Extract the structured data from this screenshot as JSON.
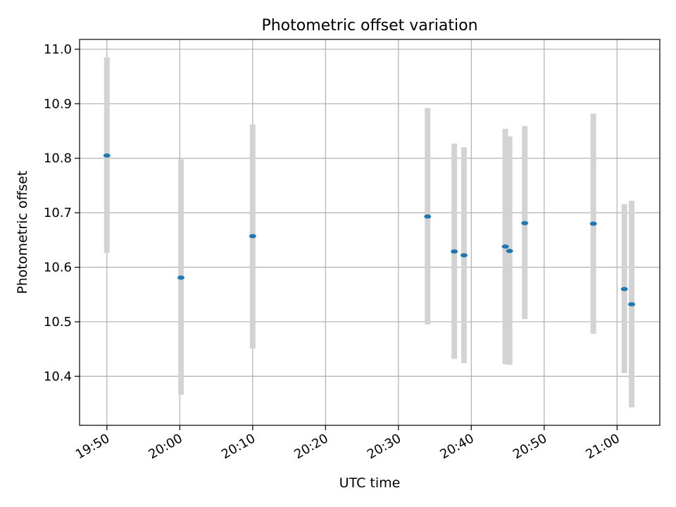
{
  "chart_data": {
    "type": "scatter",
    "title": "Photometric offset variation",
    "xlabel": "UTC time",
    "ylabel": "Photometric offset",
    "x_ticks": [
      "19:50",
      "20:00",
      "20:10",
      "20:20",
      "20:30",
      "20:40",
      "20:50",
      "21:00"
    ],
    "y_ticks": [
      "10.4",
      "10.5",
      "10.6",
      "10.7",
      "10.8",
      "10.9",
      "11.0"
    ],
    "xlim": [
      "19:46:15",
      "21:05:52"
    ],
    "ylim": [
      10.31,
      11.018
    ],
    "grid": true,
    "legend": "none",
    "series": [
      {
        "marker_color": "#1f77b4",
        "errorbar_color": "#d3d3d3",
        "points": [
          {
            "x": "19:50:00",
            "y": 10.805,
            "err_low": 10.626,
            "err_high": 10.985
          },
          {
            "x": "20:00:10",
            "y": 10.581,
            "err_low": 10.366,
            "err_high": 10.798
          },
          {
            "x": "20:10:00",
            "y": 10.657,
            "err_low": 10.451,
            "err_high": 10.862
          },
          {
            "x": "20:34:00",
            "y": 10.693,
            "err_low": 10.495,
            "err_high": 10.892
          },
          {
            "x": "20:37:40",
            "y": 10.629,
            "err_low": 10.432,
            "err_high": 10.827
          },
          {
            "x": "20:39:00",
            "y": 10.622,
            "err_low": 10.424,
            "err_high": 10.82
          },
          {
            "x": "20:44:40",
            "y": 10.638,
            "err_low": 10.422,
            "err_high": 10.854
          },
          {
            "x": "20:45:15",
            "y": 10.63,
            "err_low": 10.421,
            "err_high": 10.84
          },
          {
            "x": "20:47:20",
            "y": 10.681,
            "err_low": 10.505,
            "err_high": 10.859
          },
          {
            "x": "20:56:45",
            "y": 10.68,
            "err_low": 10.478,
            "err_high": 10.882
          },
          {
            "x": "21:01:00",
            "y": 10.56,
            "err_low": 10.406,
            "err_high": 10.716
          },
          {
            "x": "21:02:00",
            "y": 10.532,
            "err_low": 10.343,
            "err_high": 10.722
          }
        ]
      }
    ]
  }
}
